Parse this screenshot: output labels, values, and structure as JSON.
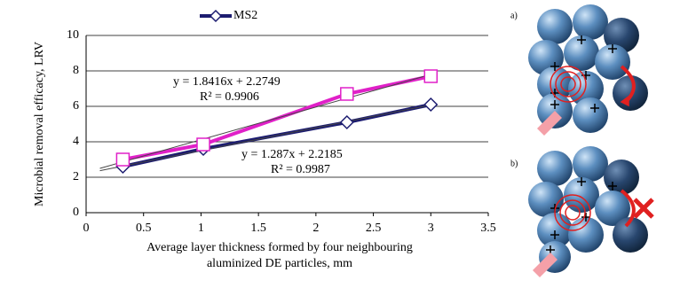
{
  "chart_data": {
    "type": "line",
    "x_label": [
      "Average layer thickness formed by four neighbouring",
      "aluminized DE particles, mm"
    ],
    "y_label": "Microbial removal efficacy, LRV",
    "series": [
      {
        "name": "MS2",
        "color": "#1c1c70",
        "marker": "diamond",
        "x": [
          0.32,
          1.02,
          2.27,
          3.0
        ],
        "values": [
          2.6,
          3.6,
          5.1,
          6.1
        ]
      },
      {
        "color": "#e020c8",
        "marker": "square",
        "x": [
          0.32,
          1.02,
          2.27,
          3.0
        ],
        "values": [
          3.0,
          3.85,
          6.7,
          7.7
        ]
      }
    ],
    "trendlines": [
      {
        "x": [
          0.12,
          3.0
        ],
        "values": [
          2.5,
          7.8
        ]
      },
      {
        "x": [
          0.12,
          3.0
        ],
        "values": [
          2.37,
          6.08
        ]
      }
    ],
    "annotations": [
      "y = 1.8416x + 2.2749",
      "R² = 0.9906",
      "y = 1.287x + 2.2185",
      "R² = 0.9987"
    ],
    "xlim": [
      0,
      3.5
    ],
    "xticks": [
      0,
      0.5,
      1,
      1.5,
      2,
      2.5,
      3,
      3.5
    ],
    "ylim": [
      0,
      10
    ],
    "yticks": [
      0,
      2,
      4,
      6,
      8,
      10
    ],
    "grid": true
  },
  "panels": [
    {
      "label": "a)"
    },
    {
      "label": "b)"
    }
  ]
}
